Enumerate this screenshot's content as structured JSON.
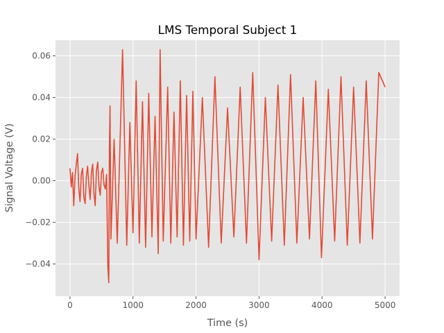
{
  "chart_data": {
    "type": "line",
    "title": "LMS Temporal Subject 1",
    "xlabel": "Time (s)",
    "ylabel": "Signal Voltage (V)",
    "xlim": [
      -230,
      5230
    ],
    "ylim": [
      -0.0555,
      0.0675
    ],
    "xticks": [
      0,
      1000,
      2000,
      3000,
      4000,
      5000
    ],
    "xtick_labels": [
      "0",
      "1000",
      "2000",
      "3000",
      "4000",
      "5000"
    ],
    "yticks": [
      -0.04,
      -0.02,
      0.0,
      0.02,
      0.04,
      0.06
    ],
    "ytick_labels": [
      "−0.04",
      "−0.02",
      "0.00",
      "0.02",
      "0.04",
      "0.06"
    ],
    "grid": true,
    "background": "#e5e5e5",
    "series": [
      {
        "color": "#e24a33",
        "x": [
          0,
          20,
          40,
          60,
          80,
          100,
          120,
          140,
          160,
          180,
          200,
          220,
          240,
          260,
          280,
          300,
          320,
          340,
          360,
          380,
          400,
          420,
          440,
          460,
          480,
          500,
          520,
          540,
          560,
          580,
          600,
          615,
          625,
          635,
          650,
          700,
          750,
          800,
          835,
          900,
          950,
          1000,
          1050,
          1100,
          1150,
          1200,
          1250,
          1300,
          1350,
          1400,
          1430,
          1480,
          1550,
          1600,
          1650,
          1700,
          1750,
          1800,
          1850,
          1900,
          1950,
          2000,
          2100,
          2200,
          2300,
          2400,
          2500,
          2600,
          2700,
          2800,
          2900,
          3000,
          3100,
          3200,
          3300,
          3400,
          3500,
          3600,
          3700,
          3800,
          3900,
          3990,
          4100,
          4200,
          4300,
          4400,
          4500,
          4600,
          4700,
          4800,
          4900,
          5000
        ],
        "y": [
          0.006,
          -0.003,
          0.004,
          -0.012,
          0.002,
          0.008,
          0.013,
          -0.004,
          -0.01,
          0.003,
          0.006,
          -0.008,
          -0.011,
          0.002,
          0.007,
          -0.002,
          -0.009,
          0.004,
          0.008,
          -0.006,
          -0.012,
          0.005,
          0.009,
          -0.003,
          -0.007,
          0.004,
          0.006,
          -0.002,
          -0.004,
          0.003,
          -0.041,
          -0.049,
          0.015,
          0.036,
          -0.028,
          0.02,
          -0.03,
          0.025,
          0.063,
          -0.031,
          0.028,
          -0.025,
          0.048,
          -0.03,
          0.038,
          -0.032,
          0.042,
          -0.027,
          0.031,
          -0.035,
          0.063,
          -0.029,
          0.045,
          -0.03,
          0.033,
          -0.027,
          0.048,
          -0.031,
          0.041,
          -0.029,
          0.043,
          -0.028,
          0.04,
          -0.032,
          0.05,
          -0.03,
          0.035,
          -0.027,
          0.045,
          -0.03,
          0.052,
          -0.038,
          0.04,
          -0.029,
          0.046,
          -0.031,
          0.051,
          -0.03,
          0.04,
          -0.028,
          0.048,
          -0.037,
          0.044,
          -0.029,
          0.05,
          -0.031,
          0.045,
          -0.03,
          0.048,
          -0.028,
          0.052,
          0.045
        ]
      }
    ]
  }
}
